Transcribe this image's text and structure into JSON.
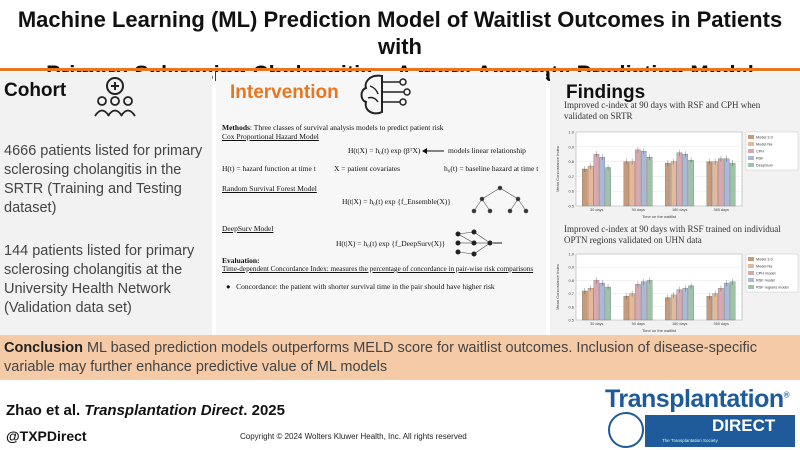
{
  "title": {
    "line1": "Machine Learning (ML) Prediction Model of Waitlist Outcomes in Patients with",
    "line2": "Primary Sclerosing Cholangitis – A more Accurate Prediction Model"
  },
  "cohort": {
    "heading": "Cohort",
    "paragraph1": "4666 patients listed for primary sclerosing cholangitis in the SRTR (Training and Testing dataset)",
    "paragraph2": "144 patients listed for primary sclerosing cholangitis at the University Health Network (Validation data set)"
  },
  "intervention": {
    "heading": "Intervention",
    "methods_label": "Methods",
    "methods_text": ": Three classes of survival analysis models to predict patient risk",
    "cox_title": "Cox Proportional Hazard Model",
    "cox_formula": "H(t|X) = h₀(t) exp (βᵀX)",
    "cox_note": "models linear relationship",
    "cox_def1": "H(t) = hazard function at time t",
    "cox_def2": "X = patient covariates",
    "cox_def3": "h₀(t) = baseline hazard at time t",
    "rsf_title": "Random Survival Forest Model",
    "rsf_formula": "H(t|X) = h₀(t) exp {f_Ensemble(X)}",
    "deepsurv_title": "DeepSurv Model",
    "deepsurv_formula": "H(t|X) = h₀(t) exp {f_DeepSurv(X)}",
    "eval_label": "Evaluation:",
    "eval_text": "Time-dependent Concordance Index: measures the percentage of concordance in pair-wise risk comparisons",
    "bullet": "Concordance: the patient with shorter survival time in the pair should have higher risk"
  },
  "findings": {
    "heading": "Findings",
    "chart1_caption": "Improved c-index at 90 days with RSF and CPH when validated on SRTR",
    "chart2_caption": "Improved c-index at 90 days with RSF trained on individual OPTN regions validated on UHN data"
  },
  "chart_data": [
    {
      "type": "bar",
      "title": "Improved c-index at 90 days with RSF and CPH when validated on SRTR",
      "xlabel": "Time on the waitlist",
      "ylabel": "Mean Concordance Index",
      "ylim": [
        0.5,
        1.0
      ],
      "categories": [
        "30 days",
        "90 days",
        "180 days",
        "365 days"
      ],
      "series": [
        {
          "name": "Model 3.0",
          "values": [
            0.75,
            0.8,
            0.79,
            0.8
          ]
        },
        {
          "name": "Model Na",
          "values": [
            0.77,
            0.8,
            0.8,
            0.8
          ]
        },
        {
          "name": "CPH",
          "values": [
            0.85,
            0.88,
            0.86,
            0.82
          ]
        },
        {
          "name": "RSF",
          "values": [
            0.83,
            0.87,
            0.85,
            0.82
          ]
        },
        {
          "name": "DeepSurv",
          "values": [
            0.76,
            0.83,
            0.81,
            0.79
          ]
        }
      ],
      "colors": [
        "#c79a7a",
        "#e6b89a",
        "#d6a8b0",
        "#a9b9d8",
        "#9fc3a9"
      ]
    },
    {
      "type": "bar",
      "title": "Improved c-index at 90 days with RSF trained on individual OPTN regions validated on UHN data",
      "xlabel": "Time on the waitlist",
      "ylabel": "Mean Concordance Index",
      "ylim": [
        0.5,
        1.0
      ],
      "categories": [
        "30 days",
        "90 days",
        "180 days",
        "365 days"
      ],
      "series": [
        {
          "name": "Model 3.0",
          "values": [
            0.72,
            0.68,
            0.67,
            0.68
          ]
        },
        {
          "name": "Model Na",
          "values": [
            0.74,
            0.7,
            0.69,
            0.7
          ]
        },
        {
          "name": "CPH model",
          "values": [
            0.8,
            0.77,
            0.73,
            0.74
          ]
        },
        {
          "name": "RSF model",
          "values": [
            0.78,
            0.79,
            0.74,
            0.78
          ]
        },
        {
          "name": "RSF regions model",
          "values": [
            0.75,
            0.8,
            0.76,
            0.79
          ]
        }
      ],
      "colors": [
        "#c79a7a",
        "#e6b89a",
        "#d6a8b0",
        "#a9b9d8",
        "#9fc3a9"
      ]
    }
  ],
  "conclusion": {
    "label": "Conclusion",
    "text": " ML based prediction models outperforms MELD score for waitlist outcomes. Inclusion of disease-specific variable may further enhance predictive value of ML models"
  },
  "footer": {
    "authors": "Zhao et al. ",
    "journal": "Transplantation Direct",
    "year": ". 2025",
    "handle": "@TXPDirect",
    "copyright": "Copyright © 2024  Wolters Kluwer Health, Inc. All rights reserved"
  },
  "logo": {
    "brand": "Transplantation",
    "direct": "DIRECT",
    "society": "The Transplantation Society"
  }
}
